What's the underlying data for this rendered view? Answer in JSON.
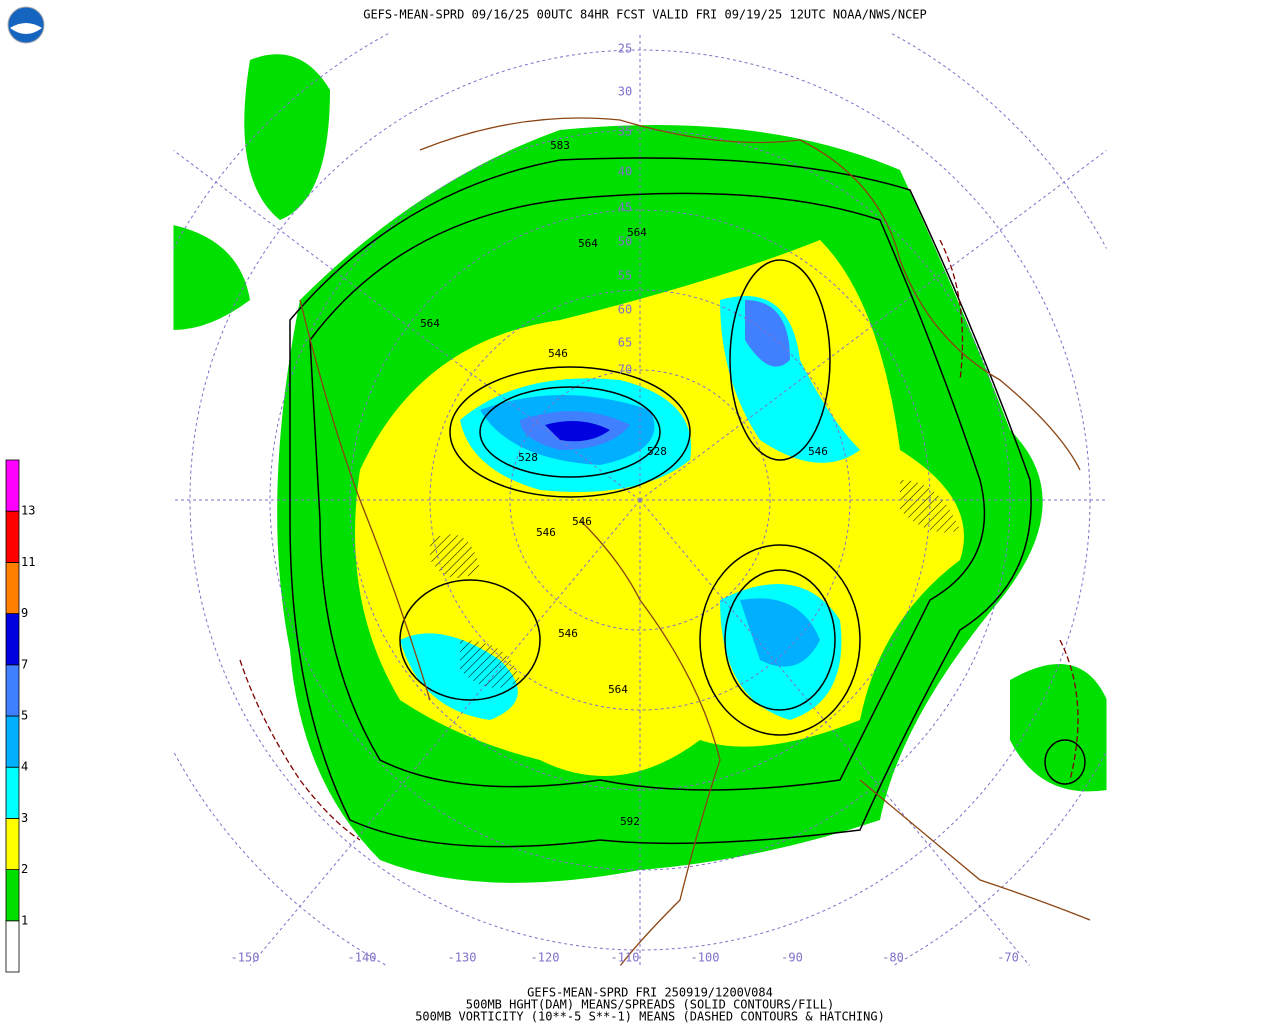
{
  "header": {
    "title": "GEFS-MEAN-SPRD 09/16/25 00UTC 84HR FCST VALID FRI 09/19/25 12UTC NOAA/NWS/NCEP"
  },
  "colorbar": {
    "labels": [
      "1",
      "2",
      "3",
      "4",
      "5",
      "7",
      "9",
      "11",
      "13"
    ],
    "colors": [
      "#ffffff",
      "#00e000",
      "#ffff00",
      "#00ffff",
      "#00b0ff",
      "#4080ff",
      "#0000e0",
      "#ff8000",
      "#ff0000",
      "#ff00ff"
    ]
  },
  "longitude_labels": [
    "-150",
    "-140",
    "-130",
    "-120",
    "-110",
    "-100",
    "-90",
    "-80",
    "-70"
  ],
  "latitude_labels": [
    "25",
    "30",
    "35",
    "40",
    "45",
    "50",
    "55",
    "60",
    "65",
    "70"
  ],
  "contour_labels": [
    "583",
    "564",
    "564",
    "564",
    "546",
    "528",
    "528",
    "546",
    "546",
    "546",
    "546",
    "564",
    "592"
  ],
  "footer": {
    "lines": [
      "GEFS-MEAN-SPRD FRI 250919/1200V084",
      "500MB HGHT(DAM) MEANS/SPREADS (SOLID CONTOURS/FILL)",
      "500MB VORTICITY (10**-5 S**-1) MEANS (DASHED CONTOURS & HATCHING)"
    ]
  }
}
